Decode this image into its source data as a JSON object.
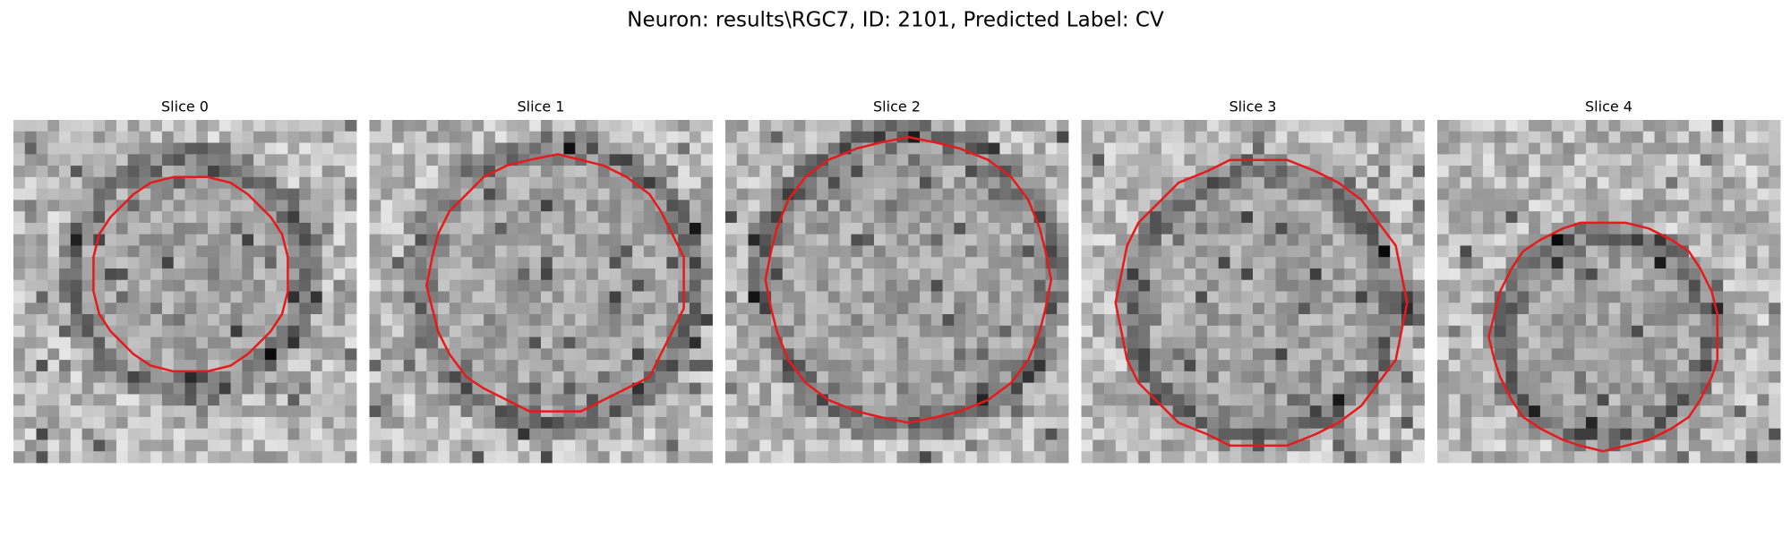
{
  "header": {
    "title": "Neuron: results\\RGC7, ID: 2101, Predicted Label: CV"
  },
  "panels": [
    {
      "title": "Slice 0"
    },
    {
      "title": "Slice 1"
    },
    {
      "title": "Slice 2"
    },
    {
      "title": "Slice 3"
    },
    {
      "title": "Slice 4"
    }
  ]
}
